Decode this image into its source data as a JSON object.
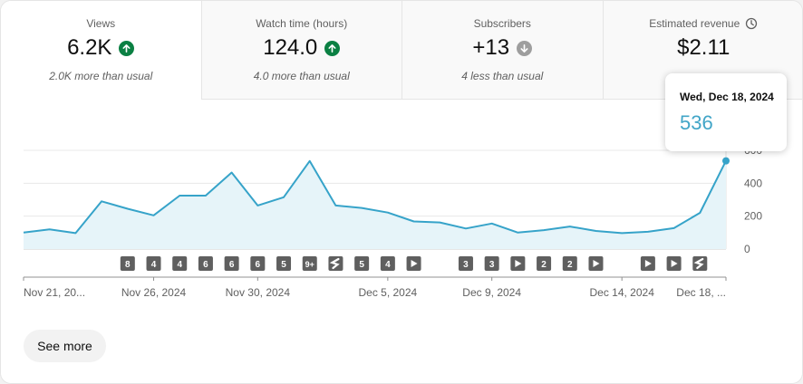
{
  "metrics": [
    {
      "label": "Views",
      "value": "6.2K",
      "trend": "up",
      "note": "2.0K more than usual"
    },
    {
      "label": "Watch time (hours)",
      "value": "124.0",
      "trend": "up",
      "note": "4.0 more than usual"
    },
    {
      "label": "Subscribers",
      "value": "+13",
      "trend": "down",
      "note": "4 less than usual"
    },
    {
      "label": "Estimated revenue",
      "value": "$2.11",
      "trend": "",
      "note": ""
    }
  ],
  "colors": {
    "up": "#0b8043",
    "down": "#9e9e9e",
    "line": "#36a3c9",
    "fill": "#e6f4f9"
  },
  "tooltip": {
    "date": "Wed, Dec 18, 2024",
    "value": "536"
  },
  "see_more_label": "See more",
  "chart_data": {
    "type": "area",
    "series": [
      {
        "values": [
          100,
          120,
          97,
          290,
          245,
          205,
          325,
          325,
          465,
          265,
          315,
          535,
          265,
          250,
          222,
          168,
          162,
          125,
          155,
          100,
          115,
          137,
          110,
          97,
          105,
          127,
          220,
          536
        ]
      }
    ],
    "y_ticks": [
      "0",
      "200",
      "400",
      "600"
    ],
    "ylim": [
      0,
      600
    ],
    "x_ticks": [
      {
        "label": "Nov 21, 20...",
        "index": 0
      },
      {
        "label": "Nov 26, 2024",
        "index": 5
      },
      {
        "label": "Nov 30, 2024",
        "index": 9
      },
      {
        "label": "Dec 5, 2024",
        "index": 14
      },
      {
        "label": "Dec 9, 2024",
        "index": 18
      },
      {
        "label": "Dec 14, 2024",
        "index": 23
      },
      {
        "label": "Dec 18, ...",
        "index": 27
      }
    ],
    "upload_markers": [
      {
        "index": 4,
        "label": "8"
      },
      {
        "index": 5,
        "label": "4"
      },
      {
        "index": 6,
        "label": "4"
      },
      {
        "index": 7,
        "label": "6"
      },
      {
        "index": 8,
        "label": "6"
      },
      {
        "index": 9,
        "label": "6"
      },
      {
        "index": 10,
        "label": "5"
      },
      {
        "index": 11,
        "label": "9+"
      },
      {
        "index": 12,
        "label": "short"
      },
      {
        "index": 13,
        "label": "5"
      },
      {
        "index": 14,
        "label": "4"
      },
      {
        "index": 15,
        "label": "play"
      },
      {
        "index": 17,
        "label": "3"
      },
      {
        "index": 18,
        "label": "3"
      },
      {
        "index": 19,
        "label": "play"
      },
      {
        "index": 20,
        "label": "2"
      },
      {
        "index": 21,
        "label": "2"
      },
      {
        "index": 22,
        "label": "play"
      },
      {
        "index": 24,
        "label": "play"
      },
      {
        "index": 25,
        "label": "play"
      },
      {
        "index": 26,
        "label": "short"
      }
    ],
    "grid": true
  }
}
